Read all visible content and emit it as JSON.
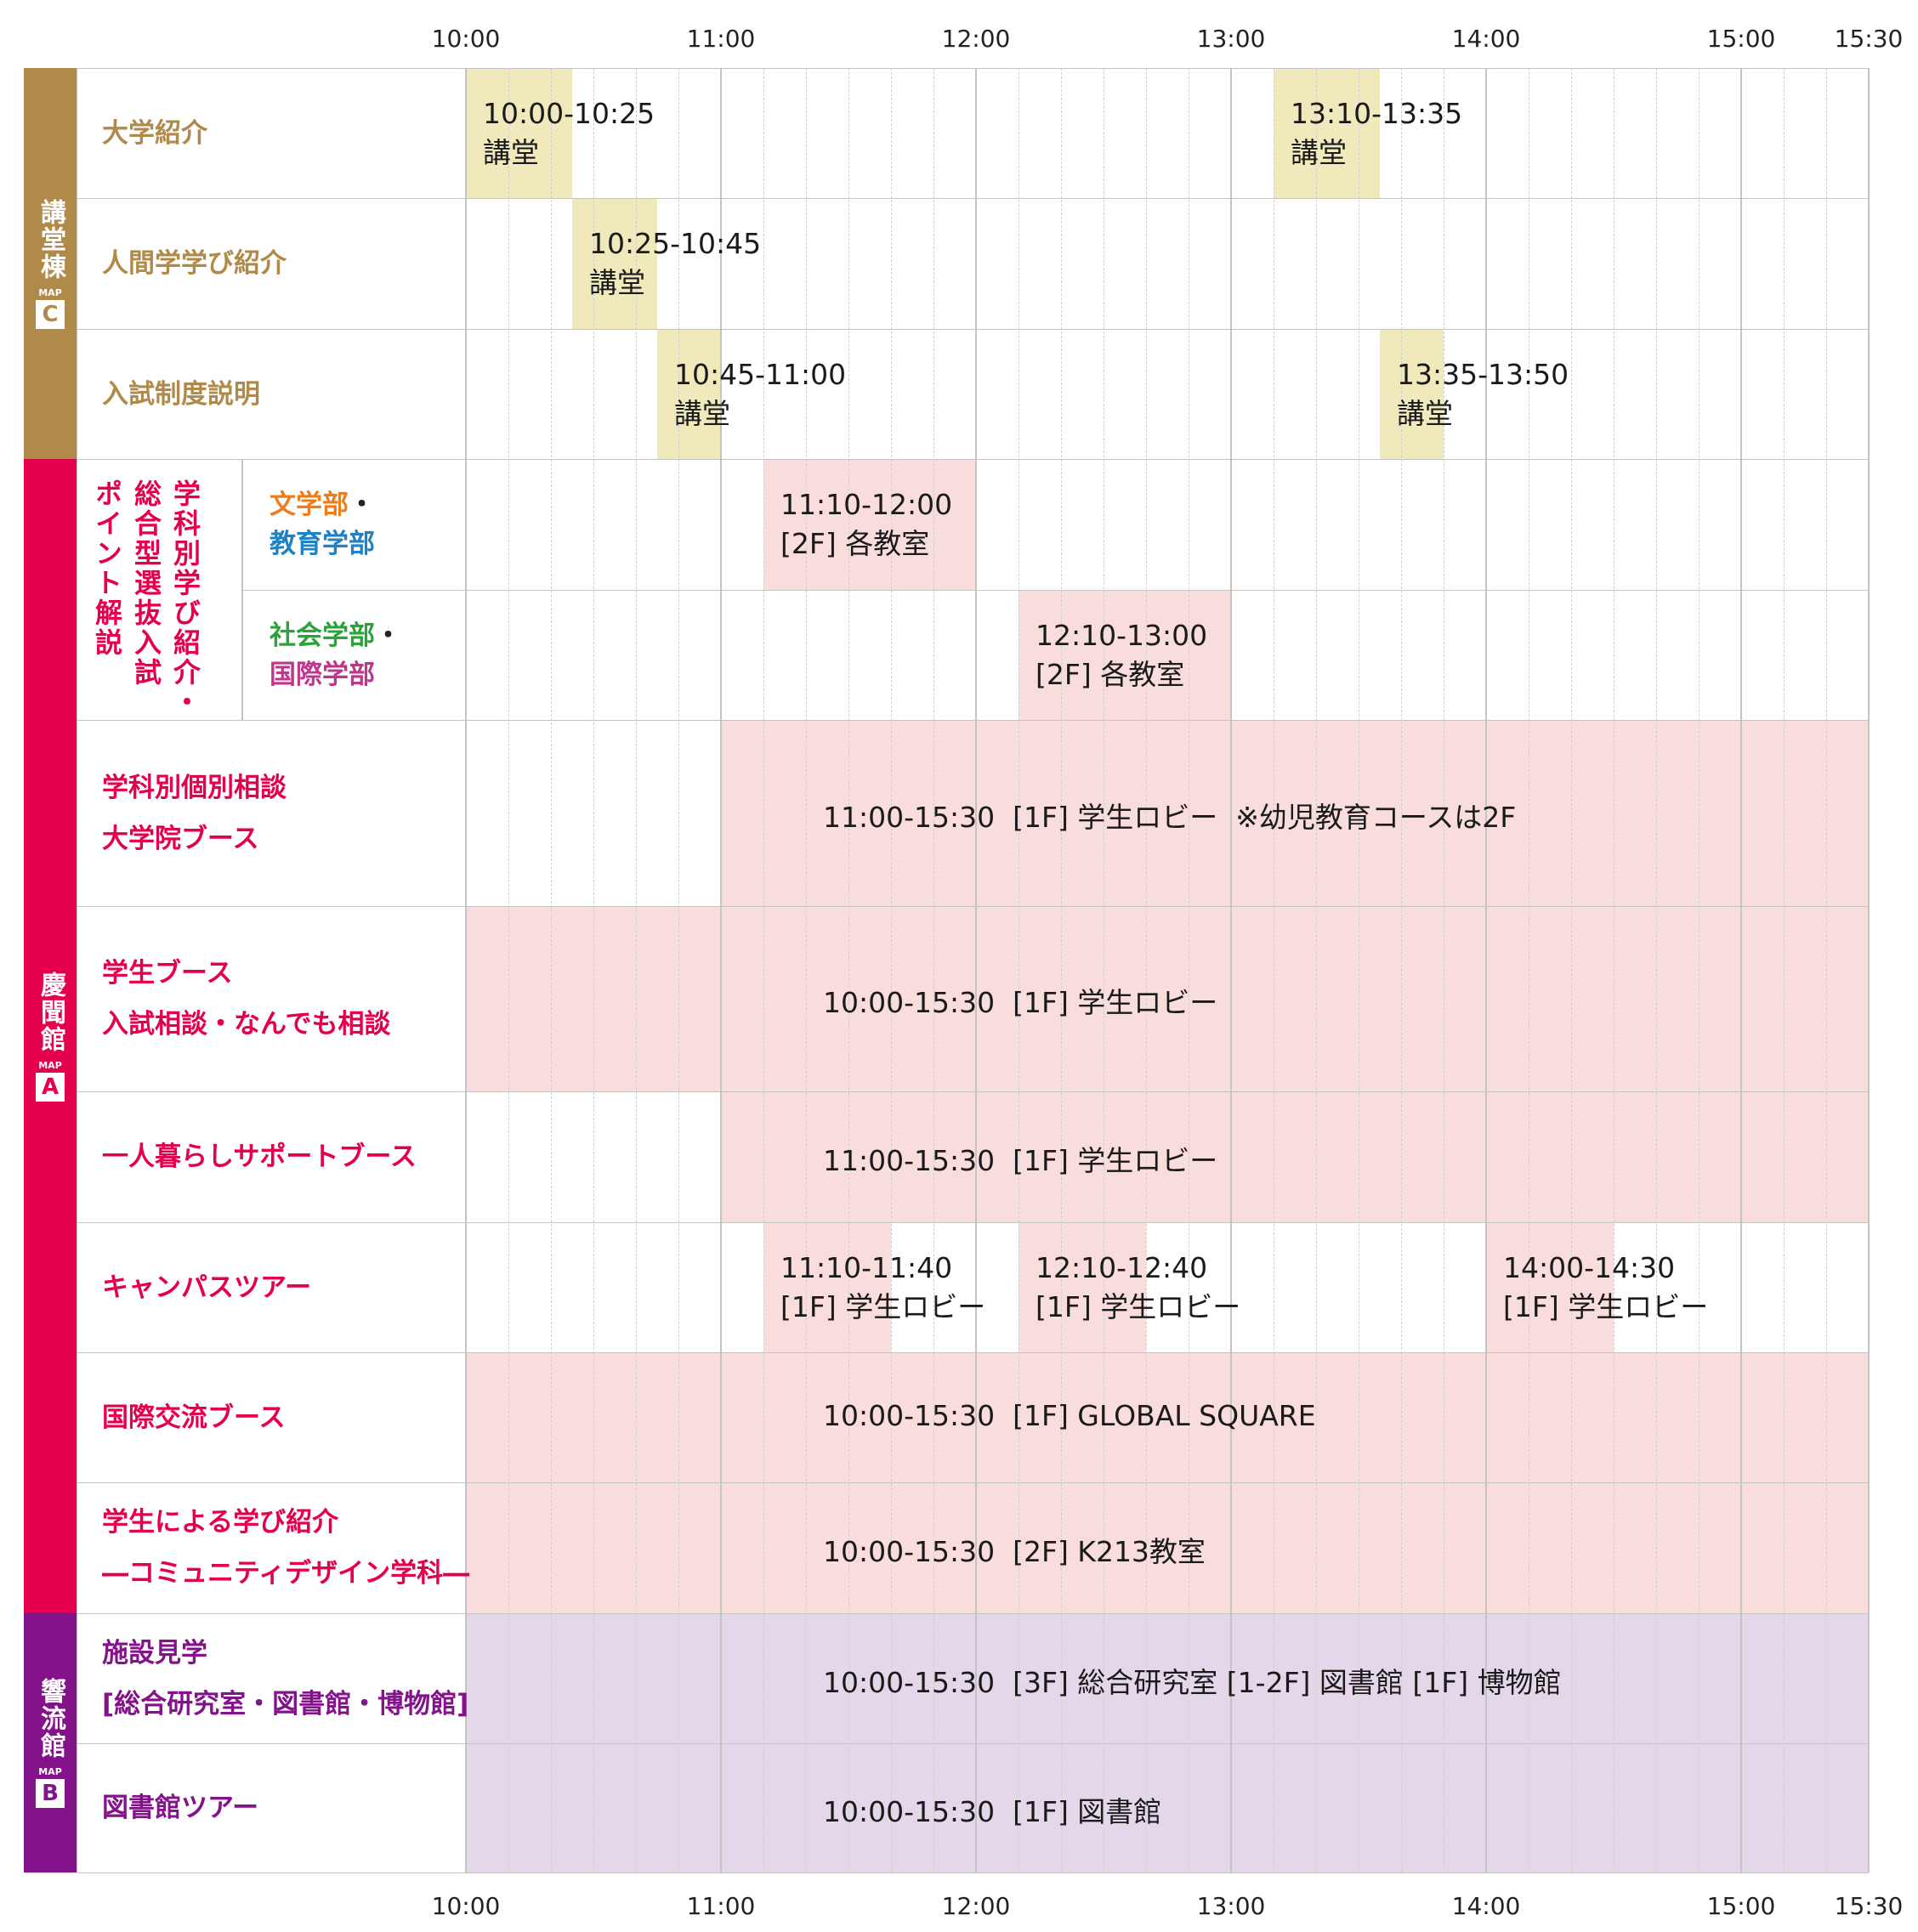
{
  "timeline": {
    "ticks": [
      "10:00",
      "11:00",
      "12:00",
      "13:00",
      "14:00",
      "15:00",
      "15:30"
    ]
  },
  "colors": {
    "kodo": "#b08a4a",
    "keibun": "#e4004e",
    "kyoryu": "#84128a",
    "kodo_block": "#efe9bc",
    "pink_block": "#f9dcdc",
    "purple_block": "#e5d7ea",
    "orange_text": "#ef7c1a",
    "blue_text": "#1f82c4",
    "green_text": "#2aa43a",
    "magenta_text": "#c0368c"
  },
  "buildings": [
    {
      "name": "講堂棟",
      "map_label": "MAP",
      "map_letter": "C",
      "color": "#b08a4a"
    },
    {
      "name": "慶聞館",
      "map_label": "MAP",
      "map_letter": "A",
      "color": "#e4004e"
    },
    {
      "name": "響流館",
      "map_label": "MAP",
      "map_letter": "B",
      "color": "#84128a"
    }
  ],
  "group_label": {
    "col1": "学科別学び紹介・",
    "col2": "総合型選抜入試",
    "col3": "ポイント解説"
  },
  "rows": [
    {
      "id": "r1",
      "label": [
        "大学紹介"
      ],
      "color": "#b08a4a",
      "events": [
        {
          "start": "10:00",
          "end": "10:25",
          "lines": [
            "10:00-10:25",
            "講堂"
          ]
        },
        {
          "start": "13:10",
          "end": "13:35",
          "lines": [
            "13:10-13:35",
            "講堂"
          ]
        }
      ]
    },
    {
      "id": "r2",
      "label": [
        "人間学学び紹介"
      ],
      "color": "#b08a4a",
      "events": [
        {
          "start": "10:25",
          "end": "10:45",
          "lines": [
            "10:25-10:45",
            "講堂"
          ]
        }
      ]
    },
    {
      "id": "r3",
      "label": [
        "入試制度説明"
      ],
      "color": "#b08a4a",
      "events": [
        {
          "start": "10:45",
          "end": "11:00",
          "lines": [
            "10:45-11:00",
            "講堂"
          ]
        },
        {
          "start": "13:35",
          "end": "13:50",
          "lines": [
            "13:35-13:50",
            "講堂"
          ]
        }
      ]
    },
    {
      "id": "r4",
      "faculties": [
        {
          "text": "文学部",
          "color": "#ef7c1a",
          "suffix": "・"
        },
        {
          "text": "教育学部",
          "color": "#1f82c4",
          "suffix": ""
        }
      ],
      "events": [
        {
          "start": "11:10",
          "end": "12:00",
          "lines": [
            "11:10-12:00",
            "[2F] 各教室"
          ]
        }
      ]
    },
    {
      "id": "r5",
      "faculties": [
        {
          "text": "社会学部",
          "color": "#2aa43a",
          "suffix": "・"
        },
        {
          "text": "国際学部",
          "color": "#c0368c",
          "suffix": ""
        }
      ],
      "events": [
        {
          "start": "12:10",
          "end": "13:00",
          "lines": [
            "12:10-13:00",
            "[2F] 各教室"
          ]
        }
      ]
    },
    {
      "id": "r6",
      "label": [
        "学科別個別相談",
        "大学院ブース"
      ],
      "color": "#e4004e",
      "events": [
        {
          "start": "11:00",
          "end": "15:30",
          "center": "11:00-15:30  [1F] 学生ロビー  ※幼児教育コースは2F"
        }
      ]
    },
    {
      "id": "r7",
      "label": [
        "学生ブース",
        "入試相談・なんでも相談"
      ],
      "color": "#e4004e",
      "events": [
        {
          "start": "10:00",
          "end": "15:30",
          "center": "10:00-15:30  [1F] 学生ロビー"
        }
      ]
    },
    {
      "id": "r8",
      "label": [
        "一人暮らしサポートブース"
      ],
      "color": "#e4004e",
      "events": [
        {
          "start": "11:00",
          "end": "15:30",
          "center": "11:00-15:30  [1F] 学生ロビー"
        }
      ]
    },
    {
      "id": "r9",
      "label": [
        "キャンパスツアー"
      ],
      "color": "#e4004e",
      "events": [
        {
          "start": "11:10",
          "end": "11:40",
          "lines": [
            "11:10-11:40",
            "[1F] 学生ロビー"
          ]
        },
        {
          "start": "12:10",
          "end": "12:40",
          "lines": [
            "12:10-12:40",
            "[1F] 学生ロビー"
          ]
        },
        {
          "start": "14:00",
          "end": "14:30",
          "lines": [
            "14:00-14:30",
            "[1F] 学生ロビー"
          ]
        }
      ]
    },
    {
      "id": "r10",
      "label": [
        "国際交流ブース"
      ],
      "color": "#e4004e",
      "events": [
        {
          "start": "10:00",
          "end": "15:30",
          "center": "10:00-15:30  [1F] GLOBAL SQUARE"
        }
      ]
    },
    {
      "id": "r11",
      "label": [
        "学生による学び紹介",
        "―コミュニティデザイン学科―"
      ],
      "color": "#e4004e",
      "events": [
        {
          "start": "10:00",
          "end": "15:30",
          "center": "10:00-15:30  [2F] K213教室"
        }
      ]
    },
    {
      "id": "r12",
      "label": [
        "施設見学",
        "[総合研究室・図書館・博物館]"
      ],
      "color": "#84128a",
      "events": [
        {
          "start": "10:00",
          "end": "15:30",
          "center": "10:00-15:30  [3F] 総合研究室 [1-2F] 図書館 [1F] 博物館"
        }
      ]
    },
    {
      "id": "r13",
      "label": [
        "図書館ツアー"
      ],
      "color": "#84128a",
      "events": [
        {
          "start": "10:00",
          "end": "15:30",
          "center": "10:00-15:30  [1F] 図書館"
        }
      ]
    }
  ]
}
